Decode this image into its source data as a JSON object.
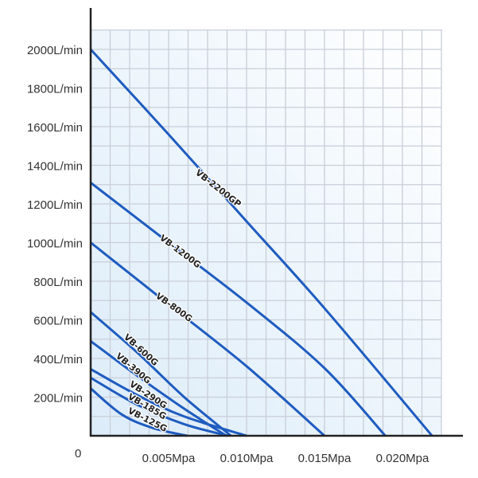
{
  "chart_data": {
    "type": "line",
    "title": "",
    "xlabel": "",
    "ylabel": "",
    "xlim": [
      0,
      0.0225
    ],
    "ylim": [
      0,
      2100
    ],
    "grid": true,
    "origin_label": "0",
    "x_ticks": [
      {
        "value": 0.005,
        "label": "0.005Mpa"
      },
      {
        "value": 0.01,
        "label": "0.010Mpa"
      },
      {
        "value": 0.015,
        "label": "0.015Mpa"
      },
      {
        "value": 0.02,
        "label": "0.020Mpa"
      }
    ],
    "y_ticks": [
      {
        "value": 200,
        "label": "200L/min"
      },
      {
        "value": 400,
        "label": "400L/min"
      },
      {
        "value": 600,
        "label": "600L/min"
      },
      {
        "value": 800,
        "label": "800L/min"
      },
      {
        "value": 1000,
        "label": "1000L/min"
      },
      {
        "value": 1200,
        "label": "1200L/min"
      },
      {
        "value": 1400,
        "label": "1400L/min"
      },
      {
        "value": 1600,
        "label": "1600L/min"
      },
      {
        "value": 1800,
        "label": "1800L/min"
      },
      {
        "value": 2000,
        "label": "2000L/min"
      }
    ],
    "colors": {
      "line": "#1f5cc0",
      "grid": "#c9ced8",
      "axis": "#222222",
      "plot_bg": "#eef6fd"
    },
    "series": [
      {
        "name": "VB-2200GP",
        "points": [
          [
            0,
            2000
          ],
          [
            0.005,
            1560
          ],
          [
            0.01,
            1110
          ],
          [
            0.015,
            660
          ],
          [
            0.0219,
            0
          ]
        ]
      },
      {
        "name": "VB-1200G",
        "points": [
          [
            0,
            1310
          ],
          [
            0.005,
            1000
          ],
          [
            0.01,
            690
          ],
          [
            0.015,
            350
          ],
          [
            0.0189,
            0
          ]
        ]
      },
      {
        "name": "VB-800G",
        "points": [
          [
            0,
            1000
          ],
          [
            0.005,
            680
          ],
          [
            0.01,
            360
          ],
          [
            0.015,
            0
          ]
        ]
      },
      {
        "name": "VB-600G",
        "points": [
          [
            0,
            640
          ],
          [
            0.003,
            430
          ],
          [
            0.006,
            200
          ],
          [
            0.009,
            0
          ]
        ]
      },
      {
        "name": "VB-390G",
        "points": [
          [
            0,
            490
          ],
          [
            0.003,
            310
          ],
          [
            0.006,
            140
          ],
          [
            0.0087,
            0
          ]
        ]
      },
      {
        "name": "VB-290G",
        "points": [
          [
            0,
            345
          ],
          [
            0.003,
            210
          ],
          [
            0.006,
            100
          ],
          [
            0.01,
            0
          ]
        ]
      },
      {
        "name": "VB-185G",
        "points": [
          [
            0,
            300
          ],
          [
            0.003,
            160
          ],
          [
            0.006,
            60
          ],
          [
            0.0088,
            0
          ]
        ]
      },
      {
        "name": "VB-125G",
        "points": [
          [
            0,
            245
          ],
          [
            0.002,
            110
          ],
          [
            0.004,
            40
          ],
          [
            0.0062,
            0
          ]
        ]
      }
    ]
  }
}
